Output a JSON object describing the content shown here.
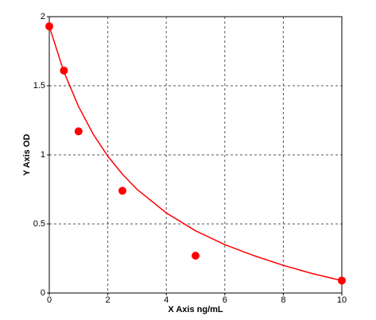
{
  "chart_data": {
    "type": "scatter",
    "x_label": "X Axis ng/mL",
    "y_label": "Y Axis OD",
    "x": [
      0,
      0.5,
      1,
      2.5,
      5,
      10
    ],
    "values": [
      1.93,
      1.61,
      1.17,
      0.74,
      0.27,
      0.09
    ],
    "color": "#ff0000",
    "fit": {
      "color": "#ff0000",
      "x": [
        0,
        0.5,
        1,
        1.5,
        2,
        2.5,
        3,
        4,
        5,
        6,
        7,
        8,
        9,
        10
      ],
      "values": [
        1.93,
        1.6,
        1.35,
        1.15,
        0.99,
        0.86,
        0.75,
        0.58,
        0.45,
        0.35,
        0.27,
        0.2,
        0.14,
        0.09
      ]
    },
    "xlim": [
      0,
      10
    ],
    "xticks": [
      0,
      2,
      4,
      6,
      8,
      10
    ],
    "ylim": [
      0,
      2
    ],
    "yticks": [
      0,
      0.5,
      1,
      1.5,
      2
    ],
    "grid": true
  }
}
